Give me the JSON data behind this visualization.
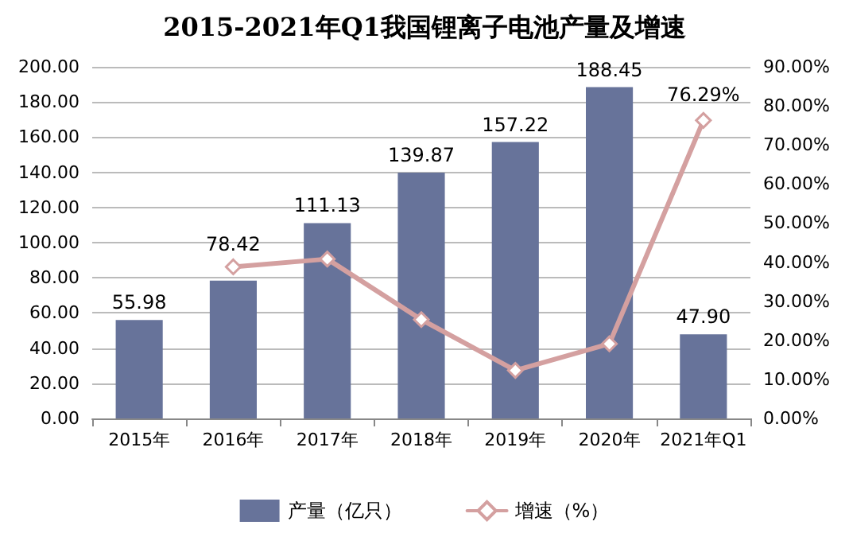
{
  "chart_data": {
    "type": "bar",
    "title": "2015-2021年Q1我国锂离子电池产量及增速",
    "categories": [
      "2015年",
      "2016年",
      "2017年",
      "2018年",
      "2019年",
      "2020年",
      "2021年Q1"
    ],
    "series": [
      {
        "name": "产量（亿只）",
        "color": "#67739a",
        "values": [
          55.98,
          78.42,
          111.13,
          139.87,
          157.22,
          188.45,
          47.9
        ],
        "value_labels": [
          "55.98",
          "78.42",
          "111.13",
          "139.87",
          "157.22",
          "188.45",
          "47.90"
        ]
      },
      {
        "name": "增速（%）",
        "type": "line",
        "axis": "y2",
        "color": "#d4a0a0",
        "marker": "diamond",
        "values": [
          null,
          38.8,
          40.8,
          25.3,
          12.3,
          19.1,
          76.29
        ],
        "value_labels": [
          null,
          null,
          null,
          null,
          null,
          null,
          "76.29%"
        ]
      }
    ],
    "ylim": [
      0,
      200
    ],
    "yticks": [
      {
        "value": 0,
        "label": "0.00"
      },
      {
        "value": 20,
        "label": "20.00"
      },
      {
        "value": 40,
        "label": "40.00"
      },
      {
        "value": 60,
        "label": "60.00"
      },
      {
        "value": 80,
        "label": "80.00"
      },
      {
        "value": 100,
        "label": "100.00"
      },
      {
        "value": 120,
        "label": "120.00"
      },
      {
        "value": 140,
        "label": "140.00"
      },
      {
        "value": 160,
        "label": "160.00"
      },
      {
        "value": 180,
        "label": "180.00"
      },
      {
        "value": 200,
        "label": "200.00"
      }
    ],
    "y2lim": [
      0,
      90
    ],
    "y2ticks": [
      {
        "value": 0,
        "label": "0.00%"
      },
      {
        "value": 10,
        "label": "10.00%"
      },
      {
        "value": 20,
        "label": "20.00%"
      },
      {
        "value": 30,
        "label": "30.00%"
      },
      {
        "value": 40,
        "label": "40.00%"
      },
      {
        "value": 50,
        "label": "50.00%"
      },
      {
        "value": 60,
        "label": "60.00%"
      },
      {
        "value": 70,
        "label": "70.00%"
      },
      {
        "value": 80,
        "label": "80.00%"
      },
      {
        "value": 90,
        "label": "90.00%"
      }
    ],
    "grid": "y",
    "legend": "bottom"
  }
}
